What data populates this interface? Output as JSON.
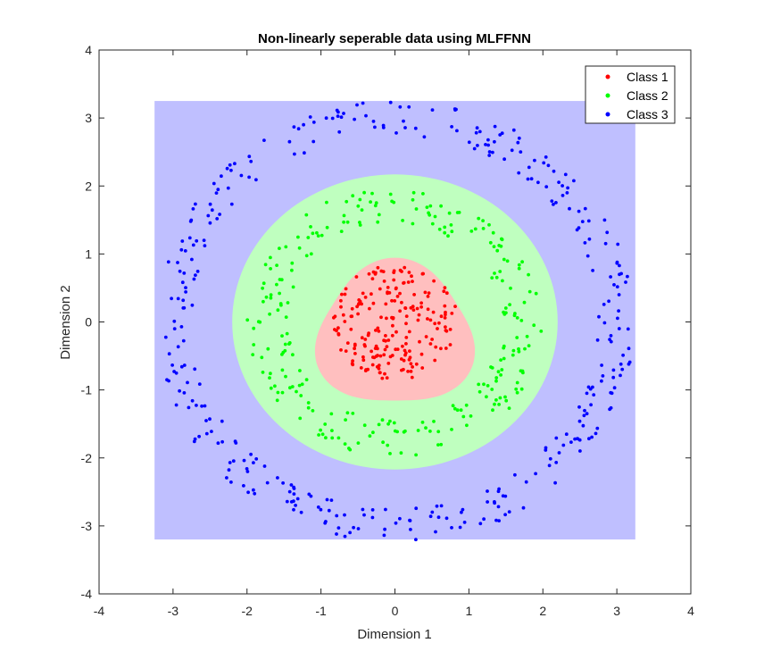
{
  "chart_data": {
    "type": "scatter",
    "title": "Non-linearly seperable data using MLFFNN",
    "xlabel": "Dimension 1",
    "ylabel": "Dimension 2",
    "xlim": [
      -4,
      4
    ],
    "ylim": [
      -4,
      4
    ],
    "xticks": [
      -4,
      -3,
      -2,
      -1,
      0,
      1,
      2,
      3,
      4
    ],
    "yticks": [
      -4,
      -3,
      -2,
      -1,
      0,
      1,
      2,
      3,
      4
    ],
    "grid": false,
    "legend_position": "top-right",
    "decision_regions": [
      {
        "class": "Class 3",
        "shape": "square",
        "xmin": -3.25,
        "xmax": 3.25,
        "ymin": -3.2,
        "ymax": 3.25,
        "color": "#bfbfff"
      },
      {
        "class": "Class 2",
        "shape": "ellipse",
        "cx": 0.0,
        "cy": 0.0,
        "rx": 2.2,
        "ry": 2.17,
        "color": "#bfffbf"
      },
      {
        "class": "Class 1",
        "shape": "blob",
        "cx": 0.0,
        "cy": -0.2,
        "r": 1.05,
        "color": "#ffbfbf"
      }
    ],
    "series": [
      {
        "name": "Class 1",
        "color": "#ff0000",
        "distribution": "disk",
        "r_min": 0.0,
        "r_max": 0.85,
        "count": 200
      },
      {
        "name": "Class 2",
        "color": "#00ff00",
        "distribution": "annulus",
        "r_min": 1.45,
        "r_max": 2.0,
        "count": 250
      },
      {
        "name": "Class 3",
        "color": "#0000ff",
        "distribution": "annulus",
        "r_min": 2.75,
        "r_max": 3.25,
        "count": 350
      }
    ]
  }
}
